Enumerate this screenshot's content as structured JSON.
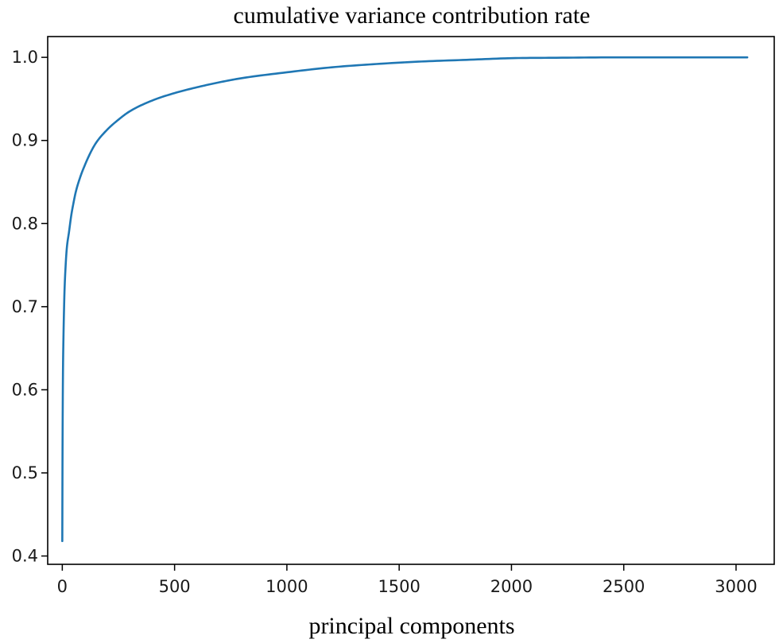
{
  "chart_data": {
    "type": "line",
    "title": "cumulative variance contribution rate",
    "xlabel": "principal components",
    "ylabel": "",
    "xlim": [
      -65,
      3170
    ],
    "ylim": [
      0.39,
      1.025
    ],
    "x_ticks": [
      0,
      500,
      1000,
      1500,
      2000,
      2500,
      3000
    ],
    "x_tick_labels": [
      "0",
      "500",
      "1000",
      "1500",
      "2000",
      "2500",
      "3000"
    ],
    "y_ticks": [
      0.4,
      0.5,
      0.6,
      0.7,
      0.8,
      0.9,
      1.0
    ],
    "y_tick_labels": [
      "0.4",
      "0.5",
      "0.6",
      "0.7",
      "0.8",
      "0.9",
      "1.0"
    ],
    "grid": false,
    "series": [
      {
        "name": "cumulative variance",
        "color": "#1f77b4",
        "x": [
          0,
          1,
          2,
          3,
          5,
          8,
          10,
          15,
          20,
          30,
          40,
          50,
          60,
          80,
          100,
          125,
          150,
          200,
          250,
          300,
          400,
          500,
          600,
          700,
          800,
          1000,
          1200,
          1400,
          1600,
          1800,
          2000,
          2200,
          2500,
          2800,
          3050
        ],
        "values": [
          0.418,
          0.52,
          0.58,
          0.62,
          0.66,
          0.7,
          0.72,
          0.75,
          0.77,
          0.79,
          0.81,
          0.825,
          0.838,
          0.856,
          0.87,
          0.885,
          0.897,
          0.913,
          0.925,
          0.935,
          0.948,
          0.957,
          0.964,
          0.97,
          0.975,
          0.982,
          0.988,
          0.992,
          0.995,
          0.997,
          0.999,
          0.9995,
          1.0,
          1.0,
          1.0
        ]
      }
    ]
  }
}
